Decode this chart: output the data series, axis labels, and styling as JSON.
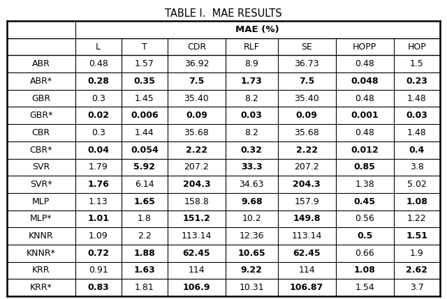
{
  "title": "TABLE I.  MAE RESULTS",
  "col_headers": [
    "",
    "L",
    "T",
    "CDR",
    "RLF",
    "SE",
    "HOPP",
    "HOP"
  ],
  "rows": [
    [
      "ABR",
      "0.48",
      "1.57",
      "36.92",
      "8.9",
      "36.73",
      "0.48",
      "1.5"
    ],
    [
      "ABR*",
      "0.28",
      "0.35",
      "7.5",
      "1.73",
      "7.5",
      "0.048",
      "0.23"
    ],
    [
      "GBR",
      "0.3",
      "1.45",
      "35.40",
      "8.2",
      "35.40",
      "0.48",
      "1.48"
    ],
    [
      "GBR*",
      "0.02",
      "0.006",
      "0.09",
      "0.03",
      "0.09",
      "0.001",
      "0.03"
    ],
    [
      "CBR",
      "0.3",
      "1.44",
      "35.68",
      "8.2",
      "35.68",
      "0.48",
      "1.48"
    ],
    [
      "CBR*",
      "0.04",
      "0.054",
      "2.22",
      "0.32",
      "2.22",
      "0.012",
      "0.4"
    ],
    [
      "SVR",
      "1.79",
      "5.92",
      "207.2",
      "33.3",
      "207.2",
      "0.85",
      "3.8"
    ],
    [
      "SVR*",
      "1.76",
      "6.14",
      "204.3",
      "34.63",
      "204.3",
      "1.38",
      "5.02"
    ],
    [
      "MLP",
      "1.13",
      "1.65",
      "158.8",
      "9.68",
      "157.9",
      "0.45",
      "1.08"
    ],
    [
      "MLP*",
      "1.01",
      "1.8",
      "151.2",
      "10.2",
      "149.8",
      "0.56",
      "1.22"
    ],
    [
      "KNNR",
      "1.09",
      "2.2",
      "113.14",
      "12.36",
      "113.14",
      "0.5",
      "1.51"
    ],
    [
      "KNNR*",
      "0.72",
      "1.88",
      "62.45",
      "10.65",
      "62.45",
      "0.66",
      "1.9"
    ],
    [
      "KRR",
      "0.91",
      "1.63",
      "114",
      "9.22",
      "114",
      "1.08",
      "2.62"
    ],
    [
      "KRR*",
      "0.83",
      "1.81",
      "106.9",
      "10.31",
      "106.87",
      "1.54",
      "3.7"
    ]
  ],
  "bold_cells": {
    "ABR*": [
      1,
      2,
      3,
      4,
      5,
      6,
      7
    ],
    "GBR*": [
      1,
      2,
      3,
      4,
      5,
      6,
      7
    ],
    "CBR*": [
      1,
      2,
      3,
      4,
      5,
      6,
      7
    ],
    "SVR": [
      2,
      4,
      6
    ],
    "SVR*": [
      1,
      3,
      5
    ],
    "MLP": [
      2,
      4,
      6,
      7
    ],
    "MLP*": [
      1,
      3,
      5
    ],
    "KNNR": [
      6,
      7
    ],
    "KNNR*": [
      1,
      2,
      3,
      4,
      5
    ],
    "KRR": [
      2,
      4,
      6,
      7
    ],
    "KRR*": [
      1,
      3,
      5
    ]
  },
  "bg_color": "#ffffff",
  "title_fontsize": 10.5,
  "cell_fontsize": 9.0
}
